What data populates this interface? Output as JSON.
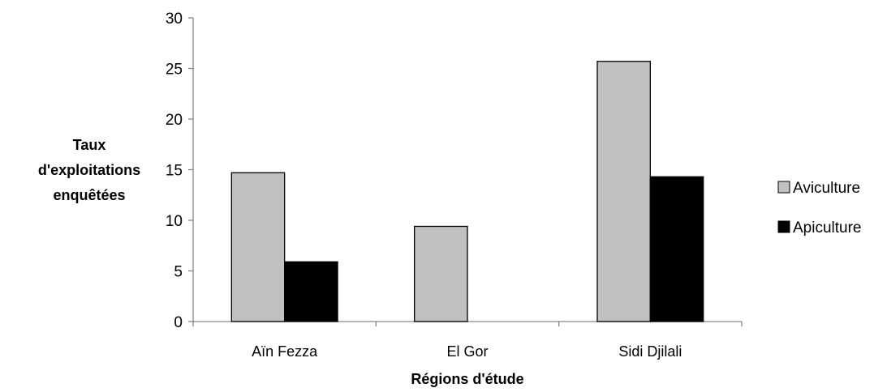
{
  "chart_data": {
    "type": "bar",
    "title": "",
    "xlabel": "Régions d'étude",
    "ylabel": [
      "Taux",
      "d'exploitations",
      "enquêtées"
    ],
    "categories": [
      "Aïn Fezza",
      "El Gor",
      "Sidi Djilali"
    ],
    "series": [
      {
        "name": "Aviculture",
        "values": [
          14.7,
          9.4,
          25.7
        ],
        "color": "#c0c0c0"
      },
      {
        "name": "Apiculture",
        "values": [
          5.9,
          null,
          14.3
        ],
        "color": "#000000"
      }
    ],
    "ylim": [
      0,
      30
    ],
    "yticks": [
      0,
      5,
      10,
      15,
      20,
      25,
      30
    ],
    "grid": false,
    "legend_position": "right"
  }
}
